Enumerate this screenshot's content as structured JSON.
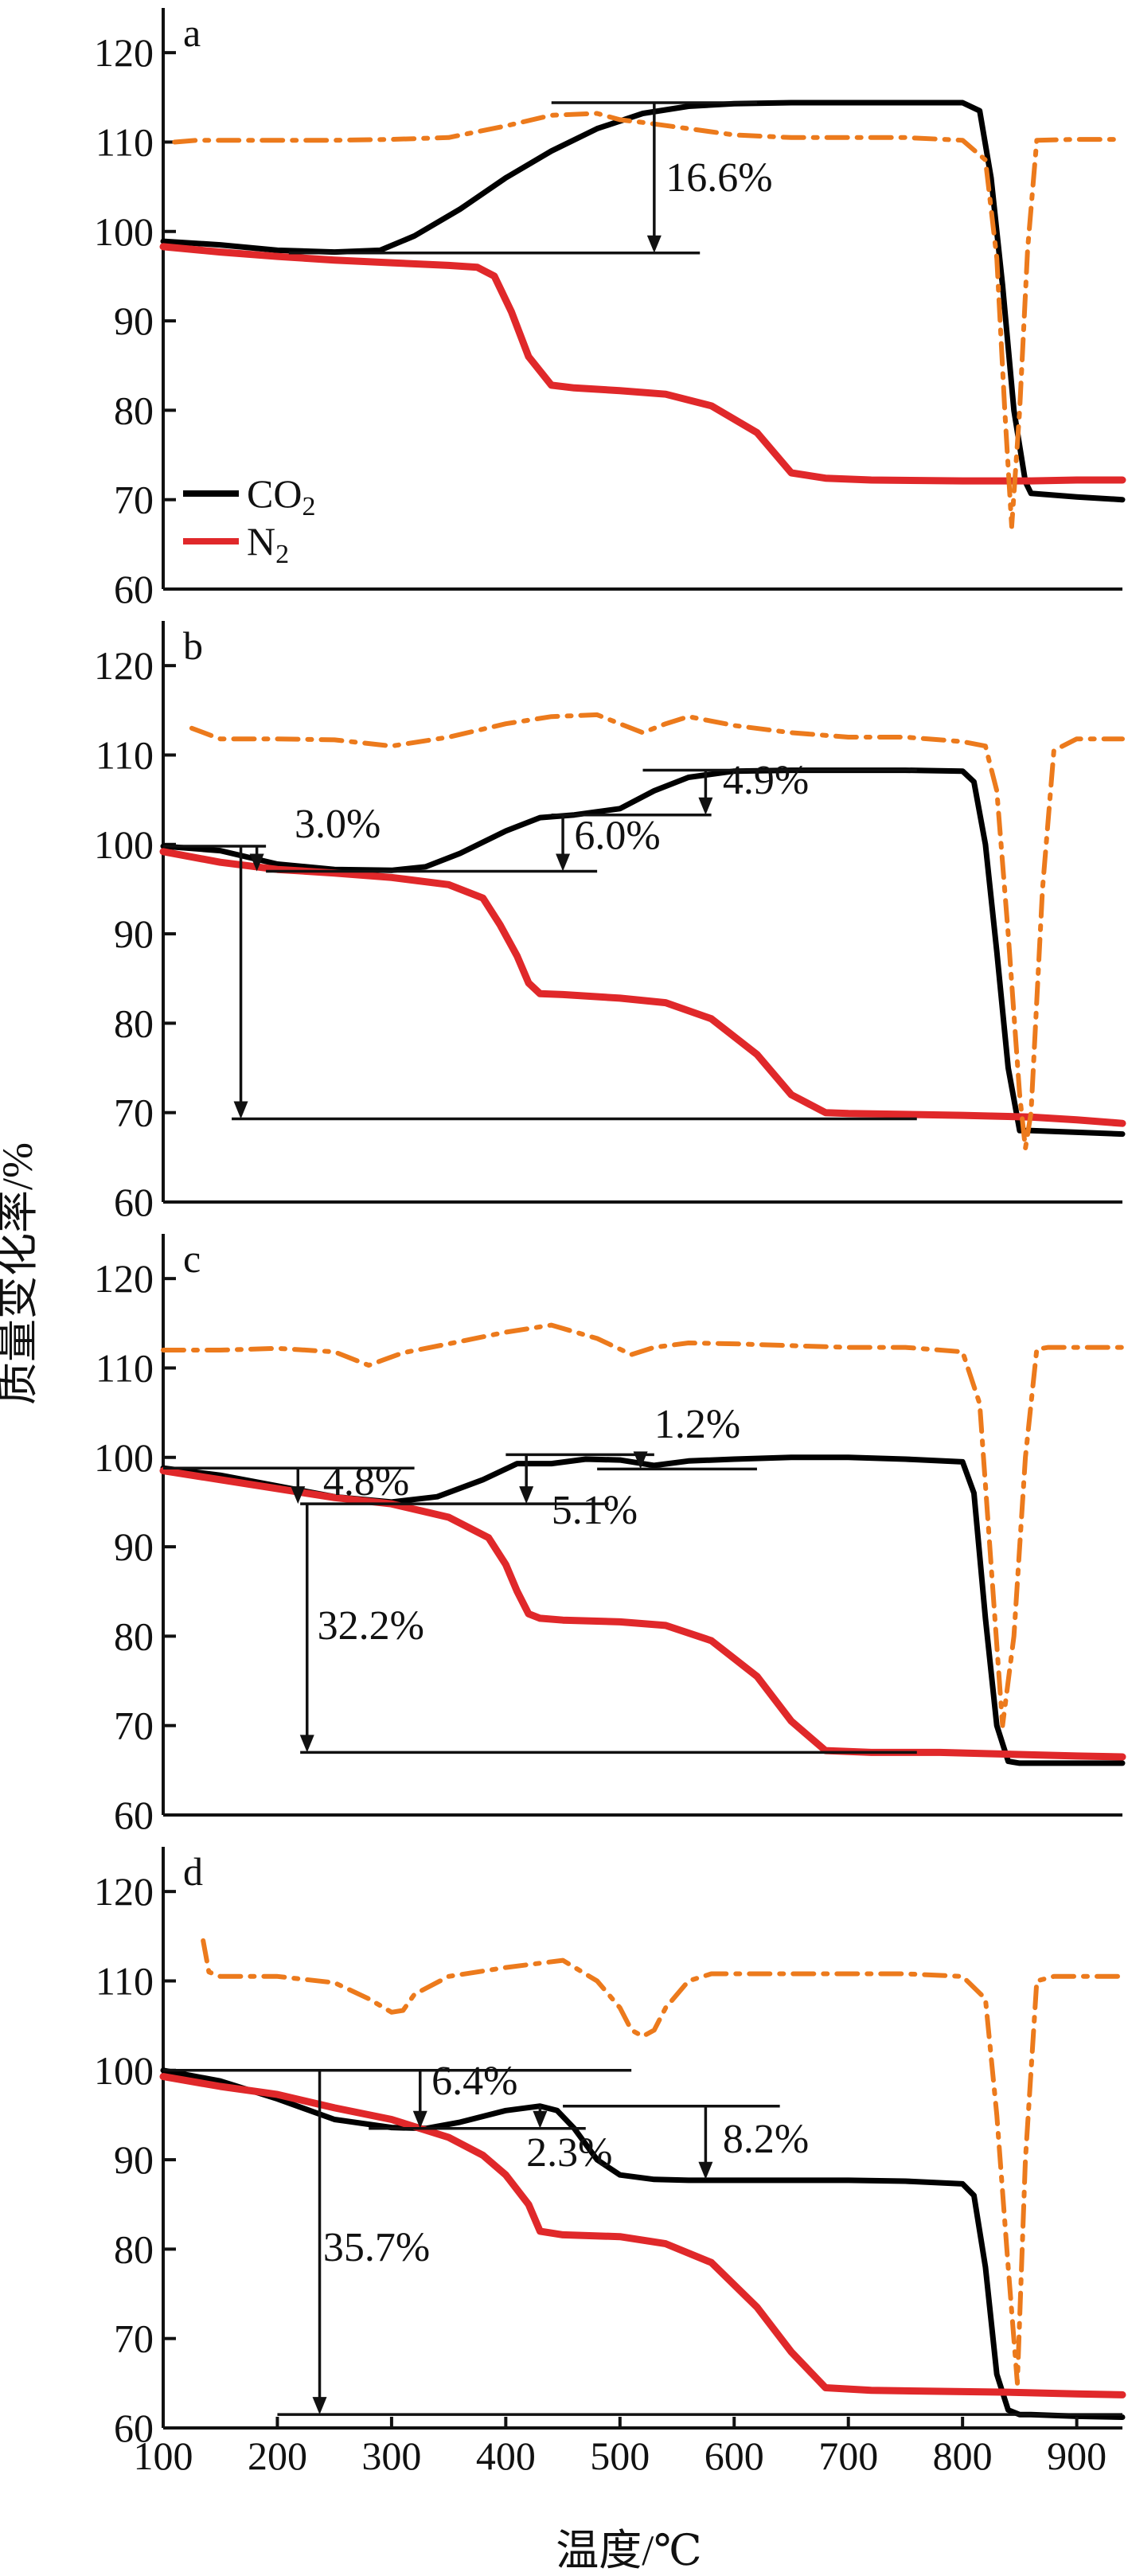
{
  "chart_data": {
    "type": "line",
    "xlabel": "温度/℃",
    "ylabel": "质量变化率/%",
    "x_ticks": [
      100,
      200,
      300,
      400,
      500,
      600,
      700,
      800,
      900
    ],
    "xlim": [
      100,
      940
    ],
    "ylim": [
      60,
      125
    ],
    "y_ticks": [
      60,
      70,
      80,
      90,
      100,
      110,
      120
    ],
    "legend": {
      "position": "bottom-left",
      "entries": [
        {
          "label": "CO",
          "sub": "2",
          "color": "#000000",
          "series": "CO2"
        },
        {
          "label": "N",
          "sub": "2",
          "color": "#e0282a",
          "series": "N2"
        }
      ]
    },
    "colors": {
      "co2": "#000000",
      "n2": "#e0282a",
      "dtg": "#ec7a1c"
    },
    "panels": [
      {
        "letter": "a",
        "series": [
          {
            "key": "co2",
            "style": "solid",
            "x": [
              100,
              150,
              200,
              250,
              290,
              320,
              360,
              400,
              440,
              480,
              520,
              560,
              600,
              650,
              700,
              750,
              800,
              815,
              825,
              835,
              845,
              855,
              860,
              900,
              940
            ],
            "y": [
              98.9,
              98.5,
              97.9,
              97.7,
              97.9,
              99.5,
              102.5,
              106,
              109,
              111.5,
              113.2,
              114,
              114.3,
              114.4,
              114.4,
              114.4,
              114.4,
              113.5,
              106,
              94,
              80,
              72,
              70.7,
              70.3,
              70
            ]
          },
          {
            "key": "n2",
            "style": "solid",
            "x": [
              100,
              150,
              200,
              250,
              300,
              350,
              375,
              390,
              405,
              420,
              440,
              460,
              500,
              540,
              580,
              620,
              650,
              680,
              720,
              800,
              860,
              900,
              940
            ],
            "y": [
              98.3,
              97.7,
              97.2,
              96.8,
              96.5,
              96.2,
              96,
              95,
              91,
              86,
              82.8,
              82.5,
              82.2,
              81.8,
              80.5,
              77.5,
              73,
              72.4,
              72.2,
              72.1,
              72.1,
              72.2,
              72.2
            ]
          },
          {
            "key": "dtg",
            "style": "dashdot",
            "x": [
              110,
              130,
              150,
              200,
              250,
              300,
              350,
              400,
              440,
              480,
              500,
              520,
              560,
              600,
              650,
              700,
              750,
              800,
              820,
              830,
              837,
              843,
              850,
              857,
              865,
              900,
              940
            ],
            "y": [
              110,
              110.2,
              110.2,
              110.2,
              110.2,
              110.3,
              110.5,
              111.8,
              113,
              113.2,
              112.5,
              112.2,
              111.5,
              110.8,
              110.5,
              110.5,
              110.5,
              110.2,
              108,
              97,
              80,
              67,
              80,
              98,
              110.2,
              110.3,
              110.3
            ]
          }
        ],
        "annotations": [
          {
            "label": "16.6%",
            "x": 540,
            "y": 104.5,
            "hlines": [
              [
                440,
                620,
                114.4
              ],
              [
                210,
                570,
                97.6
              ]
            ],
            "arrow": [
              530,
              114.4,
              97.6
            ]
          }
        ]
      },
      {
        "letter": "b",
        "series": [
          {
            "key": "co2",
            "style": "solid",
            "x": [
              100,
              150,
              200,
              250,
              300,
              330,
              360,
              400,
              430,
              460,
              500,
              530,
              560,
              600,
              650,
              700,
              750,
              800,
              810,
              820,
              830,
              840,
              850,
              860,
              900,
              940
            ],
            "y": [
              99.8,
              99.3,
              97.8,
              97.2,
              97.1,
              97.5,
              99,
              101.5,
              103,
              103.3,
              104,
              106,
              107.5,
              108.2,
              108.3,
              108.3,
              108.3,
              108.2,
              107,
              100,
              88,
              75,
              68,
              68,
              67.8,
              67.6
            ]
          },
          {
            "key": "n2",
            "style": "solid",
            "x": [
              100,
              150,
              200,
              250,
              300,
              350,
              380,
              395,
              410,
              420,
              430,
              450,
              500,
              540,
              580,
              620,
              650,
              680,
              700,
              750,
              800,
              860,
              900,
              940
            ],
            "y": [
              99.2,
              98,
              97.2,
              96.8,
              96.3,
              95.5,
              94,
              91,
              87.5,
              84.5,
              83.3,
              83.2,
              82.8,
              82.3,
              80.5,
              76.5,
              72,
              70,
              69.9,
              69.8,
              69.7,
              69.5,
              69.2,
              68.8
            ]
          },
          {
            "key": "dtg",
            "style": "dashdot",
            "x": [
              125,
              150,
              200,
              250,
              300,
              350,
              400,
              440,
              480,
              500,
              520,
              540,
              560,
              600,
              650,
              700,
              750,
              800,
              820,
              830,
              840,
              850,
              855,
              860,
              870,
              880,
              900,
              940
            ],
            "y": [
              113,
              111.8,
              111.8,
              111.7,
              111,
              112,
              113.5,
              114.3,
              114.5,
              113.5,
              112.5,
              113.5,
              114.3,
              113.3,
              112.5,
              112,
              112,
              111.5,
              111,
              106,
              90,
              72,
              66,
              70,
              95,
              110.5,
              111.8,
              111.8
            ]
          }
        ],
        "annotations": [
          {
            "label": "3.0%",
            "x": 215,
            "y": 100.8,
            "hlines": [
              [
                100,
                190,
                99.8
              ],
              [
                190,
                480,
                97
              ]
            ],
            "arrow": [
              182,
              99.8,
              97
            ]
          },
          {
            "label": "6.0%",
            "x": 460,
            "y": 99.5,
            "hlines": [
              [
                440,
                580,
                103.3
              ]
            ],
            "arrow": [
              450,
              103.3,
              97
            ]
          },
          {
            "label": "4.9%",
            "x": 590,
            "y": 105.7,
            "hlines": [
              [
                520,
                760,
                108.3
              ],
              [
                500,
                580,
                103.3
              ]
            ],
            "arrow": [
              575,
              108.3,
              103.3
            ]
          },
          {
            "label": "",
            "x": 0,
            "y": 0,
            "hlines": [
              [
                160,
                760,
                69.3
              ]
            ],
            "arrow": [
              168,
              99.8,
              69.3
            ]
          }
        ]
      },
      {
        "letter": "c",
        "series": [
          {
            "key": "co2",
            "style": "solid",
            "x": [
              100,
              150,
              200,
              250,
              300,
              340,
              380,
              410,
              440,
              470,
              500,
              530,
              560,
              600,
              650,
              700,
              750,
              800,
              810,
              820,
              830,
              840,
              850,
              900,
              940
            ],
            "y": [
              98.8,
              98,
              96.8,
              95.6,
              95,
              95.6,
              97.5,
              99.3,
              99.3,
              99.8,
              99.7,
              99.1,
              99.6,
              99.8,
              100,
              100,
              99.8,
              99.5,
              96,
              82,
              70,
              66,
              65.8,
              65.8,
              65.8
            ]
          },
          {
            "key": "n2",
            "style": "solid",
            "x": [
              100,
              150,
              200,
              250,
              300,
              350,
              385,
              400,
              410,
              420,
              430,
              450,
              500,
              540,
              580,
              620,
              650,
              680,
              720,
              780,
              840,
              900,
              940
            ],
            "y": [
              98.5,
              97.5,
              96.5,
              95.5,
              94.8,
              93.3,
              91,
              88,
              85,
              82.5,
              82,
              81.8,
              81.6,
              81.2,
              79.5,
              75.5,
              70.5,
              67.2,
              67,
              67,
              66.8,
              66.6,
              66.5
            ]
          },
          {
            "key": "dtg",
            "style": "dashdot",
            "x": [
              100,
              150,
              200,
              250,
              280,
              295,
              310,
              350,
              400,
              440,
              480,
              510,
              530,
              560,
              600,
              650,
              700,
              750,
              800,
              815,
              825,
              835,
              845,
              855,
              865,
              875,
              900,
              940
            ],
            "y": [
              112,
              112,
              112.2,
              111.8,
              110.3,
              111,
              111.7,
              112.7,
              114,
              114.8,
              113.3,
              111.5,
              112.3,
              112.8,
              112.7,
              112.5,
              112.3,
              112.3,
              111.8,
              106,
              88,
              70,
              80,
              100,
              112.1,
              112.3,
              112.3,
              112.3
            ]
          }
        ],
        "annotations": [
          {
            "label": "4.8%",
            "x": 240,
            "y": 95.8,
            "hlines": [
              [
                100,
                320,
                98.8
              ],
              [
                220,
                490,
                94.8
              ]
            ],
            "arrow": [
              218,
              98.8,
              94.8
            ]
          },
          {
            "label": "5.1%",
            "x": 440,
            "y": 92.6,
            "hlines": [
              [
                400,
                530,
                100.3
              ]
            ],
            "arrow": [
              418,
              100.3,
              94.8
            ]
          },
          {
            "label": "1.2%",
            "x": 530,
            "y": 102.2,
            "hlines": [
              [
                480,
                620,
                98.7
              ]
            ],
            "arrow": [
              518,
              100.3,
              98.7
            ]
          },
          {
            "label": "32.2%",
            "x": 235,
            "y": 79.7,
            "hlines": [
              [
                220,
                760,
                67
              ]
            ],
            "arrow": [
              226,
              94.8,
              67
            ]
          }
        ]
      },
      {
        "letter": "d",
        "series": [
          {
            "key": "co2",
            "style": "solid",
            "x": [
              100,
              150,
              200,
              250,
              300,
              330,
              360,
              400,
              430,
              445,
              460,
              480,
              500,
              530,
              560,
              600,
              650,
              700,
              750,
              800,
              810,
              820,
              830,
              840,
              850,
              860,
              900,
              940
            ],
            "y": [
              100,
              98.8,
              96.8,
              94.5,
              93.6,
              93.5,
              94.2,
              95.5,
              96,
              95.5,
              93.5,
              90,
              88.3,
              87.8,
              87.7,
              87.7,
              87.7,
              87.7,
              87.6,
              87.3,
              86,
              78,
              66,
              62,
              61.5,
              61.5,
              61.3,
              61.2
            ]
          },
          {
            "key": "n2",
            "style": "solid",
            "x": [
              100,
              150,
              200,
              250,
              300,
              350,
              380,
              400,
              420,
              430,
              450,
              500,
              540,
              580,
              620,
              650,
              680,
              720,
              780,
              840,
              900,
              940
            ],
            "y": [
              99.3,
              98.2,
              97.3,
              95.8,
              94.5,
              92.5,
              90.5,
              88.3,
              85,
              82,
              81.6,
              81.4,
              80.6,
              78.5,
              73.5,
              68.5,
              64.5,
              64.2,
              64.1,
              64,
              63.8,
              63.7
            ]
          },
          {
            "key": "dtg",
            "style": "dashdot",
            "x": [
              135,
              140,
              150,
              200,
              250,
              280,
              300,
              310,
              320,
              350,
              400,
              450,
              480,
              500,
              510,
              520,
              530,
              540,
              560,
              580,
              600,
              650,
              700,
              750,
              800,
              820,
              830,
              840,
              848,
              855,
              865,
              880,
              900,
              940
            ],
            "y": [
              114.5,
              111,
              110.5,
              110.5,
              109.8,
              108,
              106.5,
              106.7,
              108.5,
              110.5,
              111.5,
              112.3,
              110,
              107,
              104.5,
              103.8,
              104.5,
              107,
              110,
              110.8,
              110.8,
              110.8,
              110.8,
              110.8,
              110.5,
              108,
              95,
              78,
              65,
              90,
              110,
              110.5,
              110.5,
              110.5
            ]
          }
        ],
        "annotations": [
          {
            "label": "6.4%",
            "x": 335,
            "y": 97.3,
            "hlines": [
              [
                100,
                510,
                100
              ]
            ],
            "arrow": [
              325,
              100,
              93.5
            ]
          },
          {
            "label": "2.3%",
            "x": 418,
            "y": 89.3,
            "hlines": [
              [
                280,
                470,
                93.5
              ]
            ],
            "arrow": [
              430,
              96,
              93.5
            ]
          },
          {
            "label": "8.2%",
            "x": 590,
            "y": 90.8,
            "hlines": [
              [
                450,
                640,
                96
              ]
            ],
            "arrow": [
              575,
              96,
              87.8
            ]
          },
          {
            "label": "35.7%",
            "x": 240,
            "y": 78.7,
            "hlines": [
              [
                200,
                940,
                61.5
              ]
            ],
            "arrow": [
              237,
              100,
              61.5
            ]
          }
        ]
      }
    ]
  }
}
